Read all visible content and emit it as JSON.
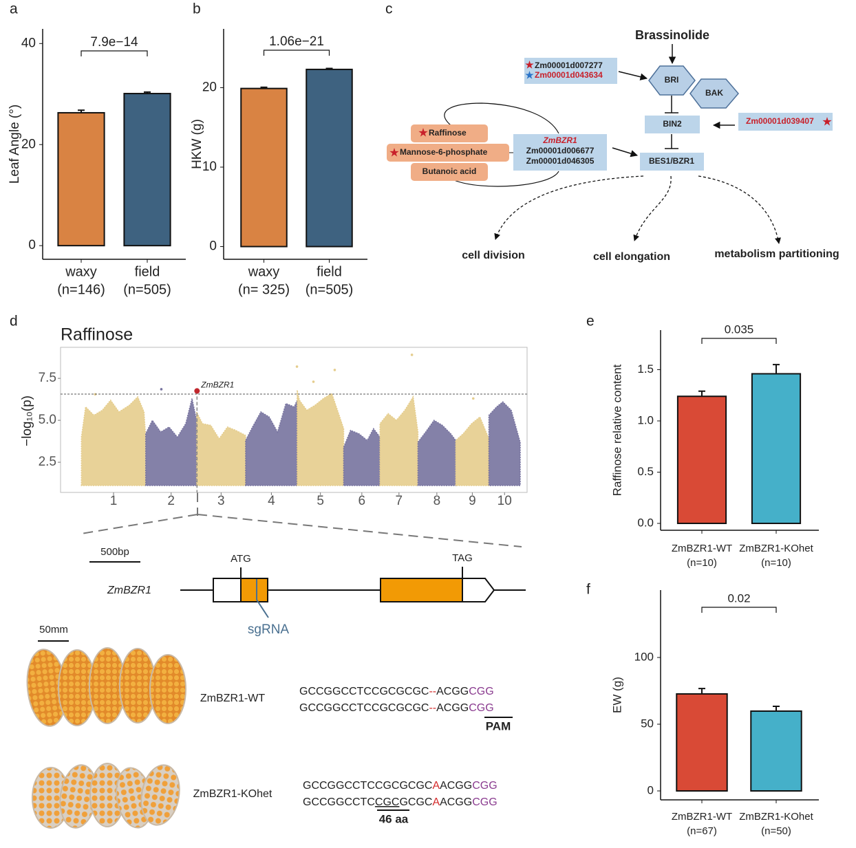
{
  "chart_data": [
    {
      "type": "bar",
      "panel": "a",
      "ylabel": "Leaf Angle (°)",
      "categories": [
        "waxy",
        "field"
      ],
      "category_notes": [
        "(n=146)",
        "(n=505)"
      ],
      "values": [
        26.3,
        30.1
      ],
      "errors": [
        0.5,
        0.3
      ],
      "colors": [
        "#d98343",
        "#3e6280"
      ],
      "ylim": [
        -2.7,
        42.9
      ],
      "yticks": [
        0,
        20,
        40
      ],
      "annotation": "7.9e−14"
    },
    {
      "type": "bar",
      "panel": "b",
      "ylabel": "HKW (g)",
      "categories": [
        "waxy",
        "field"
      ],
      "category_notes": [
        "(n= 325)",
        "(n=505)"
      ],
      "values": [
        19.9,
        22.3
      ],
      "errors": [
        0.15,
        0.12
      ],
      "colors": [
        "#d98343",
        "#3e6280"
      ],
      "ylim": [
        -1.6,
        27.4
      ],
      "yticks": [
        0,
        10,
        20
      ],
      "annotation": "1.06e−21"
    },
    {
      "type": "manhattan",
      "panel": "d",
      "title": "Raffinose",
      "ylabel": "−log₁₀(p)",
      "xlim": [
        -100,
        2136
      ],
      "ylim": [
        0.7,
        9.35
      ],
      "yticks": [
        2.5,
        {
          "value": 5,
          "label": "5.0"
        },
        7.5
      ],
      "xticks": [
        {
          "value": 154,
          "label": "1"
        },
        {
          "value": 430,
          "label": "2"
        },
        {
          "value": 669.5,
          "label": "3"
        },
        {
          "value": 910.5,
          "label": "4"
        },
        {
          "value": 1145.5,
          "label": "5"
        },
        {
          "value": 1344,
          "label": "6"
        },
        {
          "value": 1522,
          "label": "7"
        },
        {
          "value": 1703.5,
          "label": "8"
        },
        {
          "value": 1873.5,
          "label": "9"
        },
        {
          "value": 2028,
          "label": "10"
        }
      ],
      "threshold": 6.56,
      "chromosomes": [
        {
          "color": "#e5cd8d",
          "x": [
            0,
            20,
            60,
            100,
            140,
            180,
            230,
            270,
            300,
            308
          ],
          "values": [
            4.0,
            5.8,
            5.3,
            5.6,
            6.2,
            5.5,
            5.9,
            6.4,
            5.5,
            4.0
          ],
          "hit_x": [
            66
          ],
          "hit_values": [
            6.55
          ]
        },
        {
          "color": "#77739f",
          "x": [
            308,
            340,
            380,
            420,
            460,
            500,
            530,
            552
          ],
          "values": [
            4.2,
            5.0,
            4.3,
            4.6,
            4.0,
            4.8,
            6.3,
            5.0
          ],
          "hit_x": [
            383
          ],
          "hit_values": [
            6.85
          ]
        },
        {
          "color": "#e5cd8d",
          "x": [
            552,
            580,
            620,
            660,
            700,
            740,
            787
          ],
          "values": [
            5.5,
            4.8,
            4.7,
            3.9,
            4.6,
            4.4,
            4.1
          ]
        },
        {
          "color": "#77739f",
          "x": [
            787,
            820,
            860,
            900,
            940,
            980,
            1020,
            1034
          ],
          "values": [
            3.8,
            4.6,
            5.5,
            5.2,
            4.3,
            6.0,
            5.8,
            6.2
          ]
        },
        {
          "color": "#e5cd8d",
          "x": [
            1034,
            1045,
            1080,
            1120,
            1160,
            1200,
            1230,
            1257
          ],
          "values": [
            6.8,
            6.2,
            5.6,
            5.9,
            6.3,
            6.6,
            5.5,
            4.5
          ],
          "hit_x": [
            1033,
            1112,
            1214
          ],
          "hit_values": [
            8.2,
            7.3,
            8.0
          ]
        },
        {
          "color": "#77739f",
          "x": [
            1257,
            1290,
            1330,
            1370,
            1400,
            1431
          ],
          "values": [
            3.4,
            4.4,
            4.2,
            3.8,
            4.5,
            4.0
          ]
        },
        {
          "color": "#e5cd8d",
          "x": [
            1431,
            1470,
            1510,
            1550,
            1590,
            1613
          ],
          "values": [
            4.8,
            5.4,
            5.0,
            5.6,
            6.4,
            4.3
          ],
          "hit_x": [
            1584
          ],
          "hit_values": [
            8.9
          ]
        },
        {
          "color": "#77739f",
          "x": [
            1613,
            1650,
            1690,
            1730,
            1770,
            1794
          ],
          "values": [
            3.7,
            4.3,
            5.0,
            4.7,
            4.2,
            3.8
          ]
        },
        {
          "color": "#e5cd8d",
          "x": [
            1794,
            1830,
            1870,
            1910,
            1953
          ],
          "values": [
            3.8,
            4.2,
            4.8,
            5.2,
            3.9
          ],
          "hit_x": [
            1878
          ],
          "hit_values": [
            6.3
          ]
        },
        {
          "color": "#77739f",
          "x": [
            1953,
            1990,
            2020,
            2060,
            2103
          ],
          "values": [
            5.3,
            5.8,
            6.1,
            5.6,
            3.7
          ]
        }
      ],
      "highlight": {
        "label": "ZmBZR1",
        "x": 554,
        "value": 6.75,
        "color": "#c0272d"
      }
    },
    {
      "type": "bar",
      "panel": "e",
      "ylabel": "Raffinose relative content",
      "categories": [
        "ZmBZR1-WT",
        "ZmBZR1-KOhet"
      ],
      "category_notes": [
        "(n=10)",
        "(n=10)"
      ],
      "values": [
        1.24,
        1.46
      ],
      "errors": [
        0.05,
        0.09
      ],
      "colors": [
        "#d94a36",
        "#45b0c9"
      ],
      "ylim": [
        -0.067,
        1.886
      ],
      "yticks": [
        {
          "value": 0,
          "label": "0.0"
        },
        0.5,
        {
          "value": 1,
          "label": "1.0"
        },
        1.5
      ],
      "annotation": "0.035"
    },
    {
      "type": "bar",
      "panel": "f",
      "ylabel": "EW (g)",
      "categories": [
        "ZmBZR1-WT",
        "ZmBZR1-KOhet"
      ],
      "category_notes": [
        "(n=67)",
        "(n=50)"
      ],
      "values": [
        72.7,
        59.8
      ],
      "errors": [
        4,
        3.6
      ],
      "colors": [
        "#d94a36",
        "#45b0c9"
      ],
      "ylim": [
        -6.7,
        150.5
      ],
      "yticks": [
        0,
        50,
        100
      ],
      "annotation": "0.02"
    }
  ],
  "pathway": {
    "panel": "c",
    "hormone": "Brassinolide",
    "receptor_genes": [
      "Zm00001d007277",
      "Zm00001d043634"
    ],
    "receptors": [
      "BRI",
      "BAK"
    ],
    "kinase": "BIN2",
    "kinase_gene": "Zm00001d039407",
    "transcription_factor": "BES1/BZR1",
    "tf_genes": [
      "ZmBZR1",
      "Zm00001d006677",
      "Zm00001d046305"
    ],
    "metabolites": [
      "Raffinose",
      "Mannose-6-phosphate",
      "Butanoic acid"
    ],
    "outcomes": [
      "cell division",
      "cell elongation",
      "metabolism partitioning"
    ]
  },
  "gene_model": {
    "scale": "500bp",
    "gene": "ZmBZR1",
    "start_codon": "ATG",
    "stop_codon": "TAG",
    "guide": "sgRNA"
  },
  "ears": {
    "scale": "50mm",
    "genotypes": [
      "ZmBZR1-WT",
      "ZmBZR1-KOhet"
    ]
  },
  "sequences": {
    "wt": [
      [
        {
          "text": "GCCGGCCTCCGCGCGC",
          "color": "#222222"
        },
        {
          "text": "--",
          "color": "#d42a2a"
        },
        {
          "text": "ACGG",
          "color": "#222222"
        },
        {
          "text": "CGG",
          "color": "#8a3b8f"
        }
      ],
      [
        {
          "text": "GCCGGCCTCCGCGCGC",
          "color": "#222222"
        },
        {
          "text": "--",
          "color": "#d42a2a"
        },
        {
          "text": "ACGG",
          "color": "#222222"
        },
        {
          "text": "CGG",
          "color": "#8a3b8f"
        }
      ]
    ],
    "ko": [
      [
        {
          "text": "GCCGGCCTCCGCGCGC",
          "color": "#222222"
        },
        {
          "text": "A",
          "color": "#d42a2a"
        },
        {
          "text": "ACGG",
          "color": "#222222"
        },
        {
          "text": "CGG",
          "color": "#8a3b8f"
        }
      ],
      [
        {
          "text": "GCCGGCCTC",
          "color": "#222222"
        },
        {
          "text": "CGC",
          "color": "#222222",
          "underline": true
        },
        {
          "text": "GCGC",
          "color": "#222222"
        },
        {
          "text": "A",
          "color": "#d42a2a"
        },
        {
          "text": "ACGG",
          "color": "#222222"
        },
        {
          "text": "CGG",
          "color": "#8a3b8f"
        }
      ]
    ],
    "pam": "PAM",
    "deletion": "46 aa"
  }
}
